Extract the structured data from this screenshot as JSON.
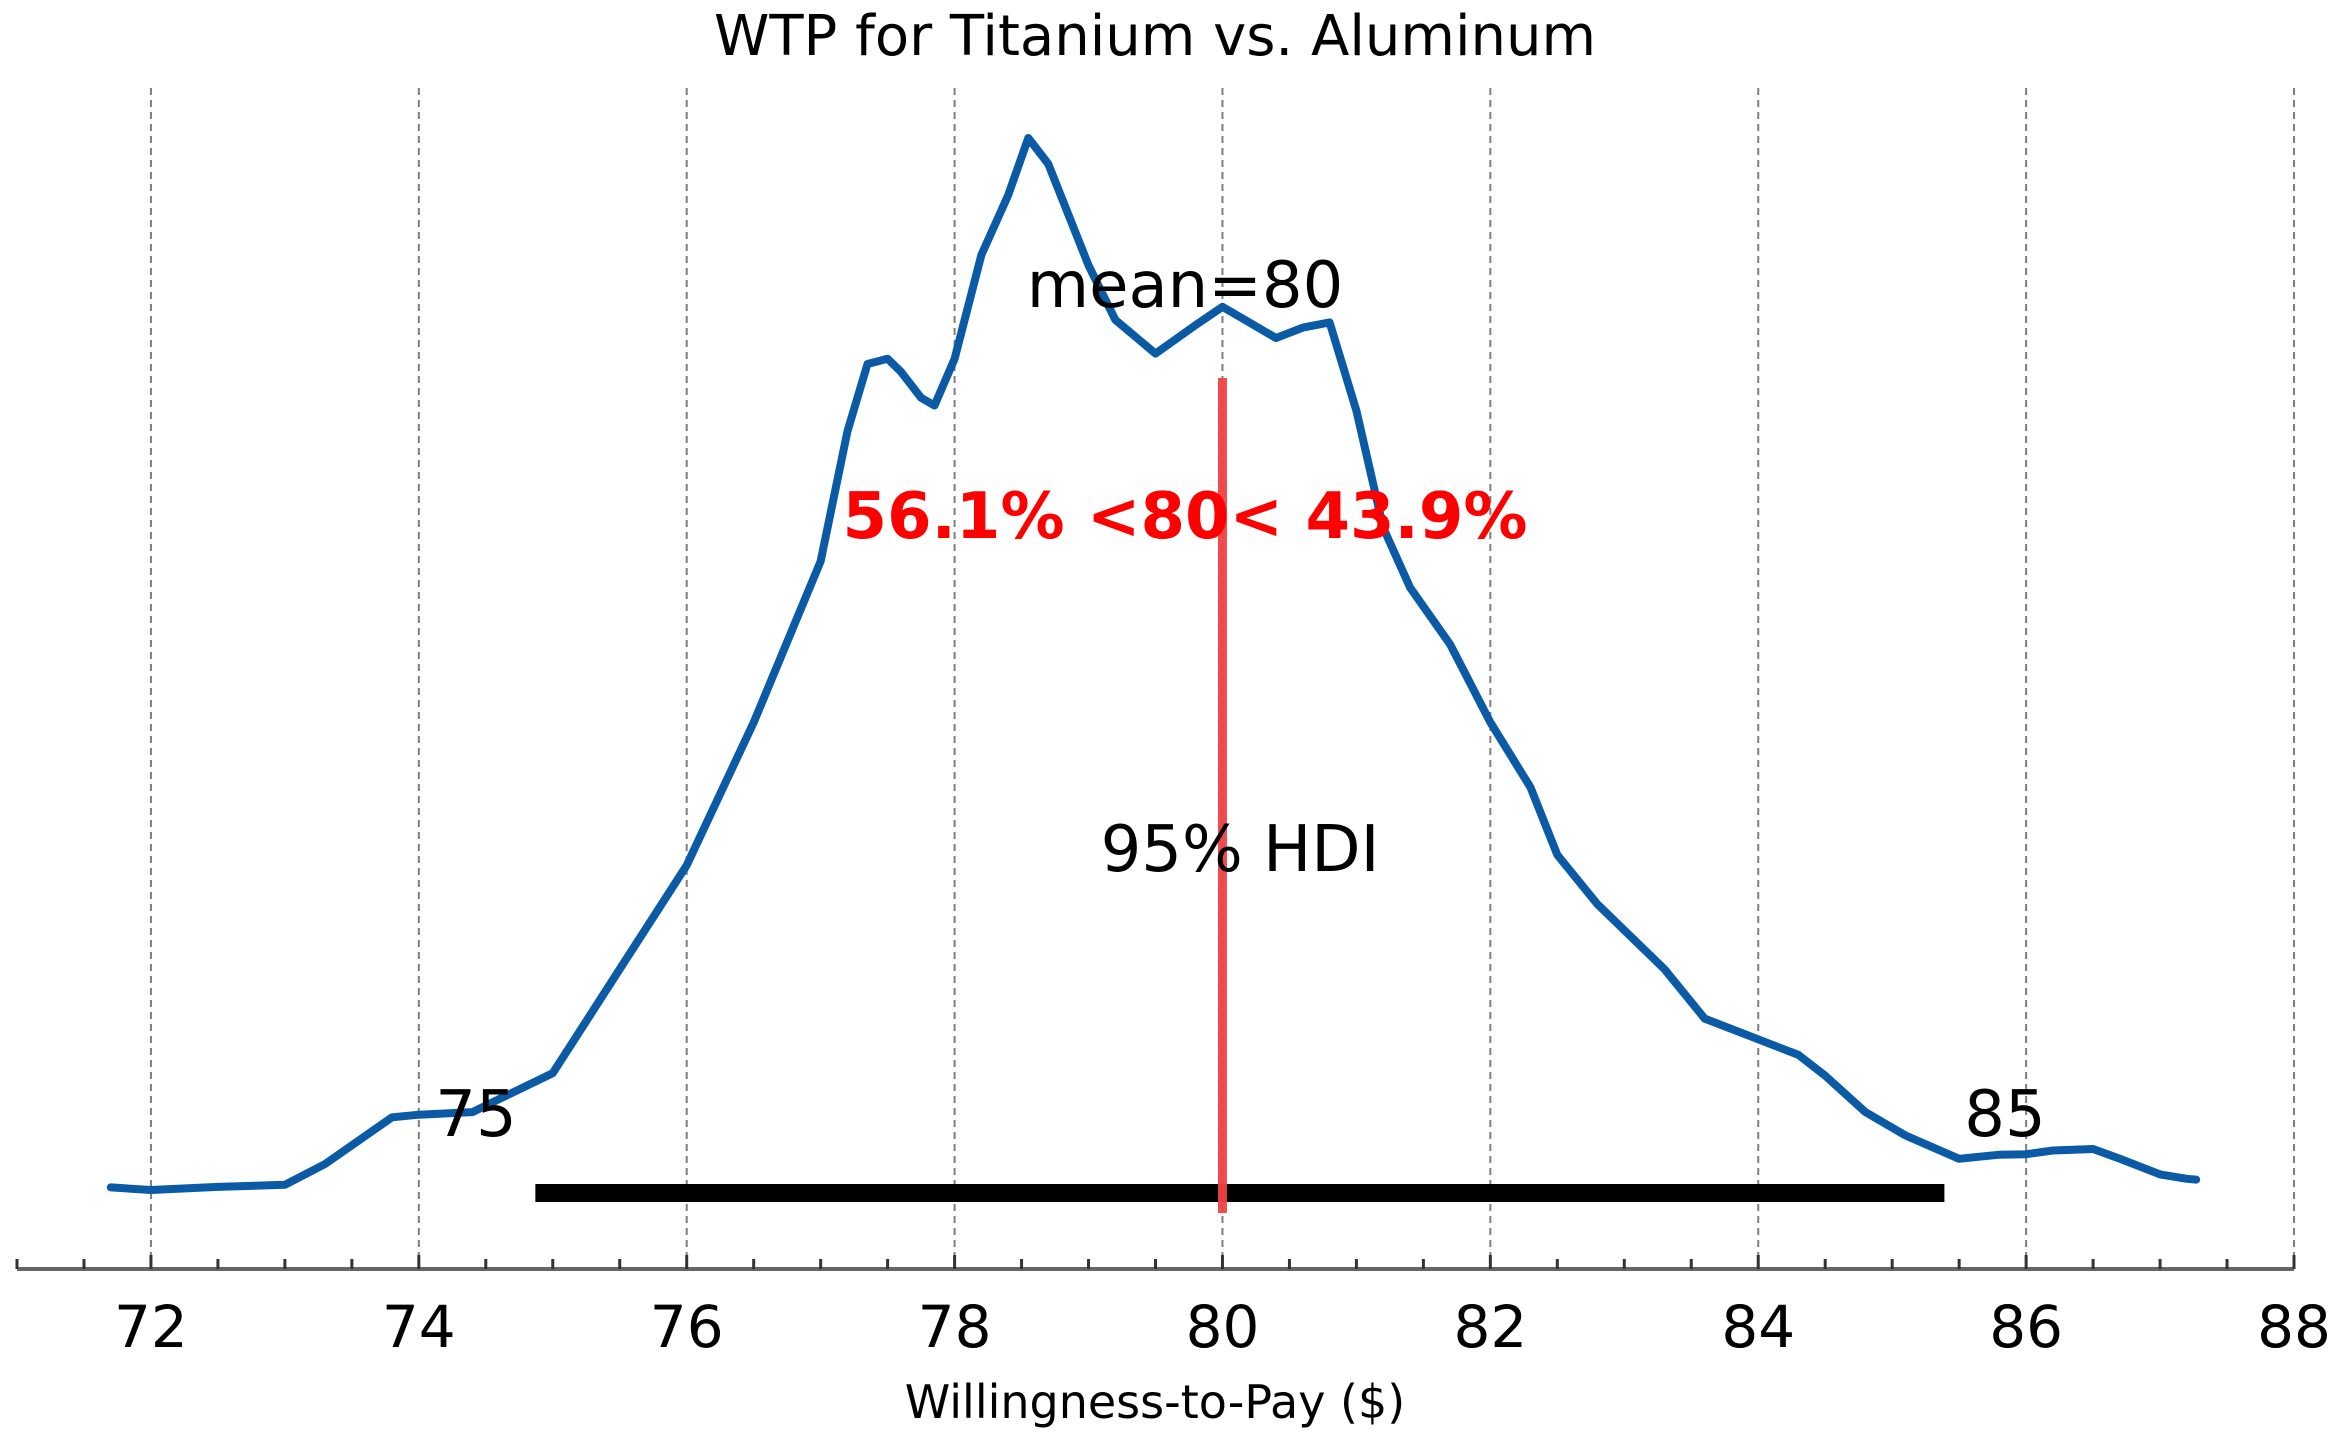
{
  "chart_data": {
    "type": "area",
    "title": "WTP for Titanium vs. Aluminum",
    "xlabel": "Willingness-to-Pay ($)",
    "ylabel": "",
    "xlim": [
      71,
      88
    ],
    "ylim": [
      -0.02,
      0.41
    ],
    "x_ticks": [
      72,
      74,
      76,
      78,
      80,
      82,
      84,
      86,
      88
    ],
    "x_minor_step": 0.5,
    "grid": {
      "x": true,
      "style": "dashed",
      "color": "#7f7f7f"
    },
    "series": [
      {
        "color": "#0b5aa6",
        "x": [
          71.7,
          72.0,
          72.5,
          73.0,
          73.3,
          73.8,
          74.0,
          74.4,
          75.0,
          75.5,
          76.0,
          76.5,
          77.0,
          77.2,
          77.35,
          77.5,
          77.6,
          77.75,
          77.85,
          78.0,
          78.2,
          78.4,
          78.55,
          78.7,
          79.0,
          79.2,
          79.5,
          79.8,
          80.0,
          80.2,
          80.4,
          80.6,
          80.8,
          81.0,
          81.2,
          81.4,
          81.7,
          82.0,
          82.3,
          82.5,
          82.8,
          83.0,
          83.3,
          83.6,
          84.0,
          84.3,
          84.5,
          84.8,
          85.1,
          85.5,
          85.8,
          86.0,
          86.2,
          86.5,
          86.7,
          87.0,
          87.2,
          87.27
        ],
        "y": [
          0.001,
          0.0,
          0.0012,
          0.002,
          0.01,
          0.028,
          0.029,
          0.03,
          0.045,
          0.085,
          0.125,
          0.18,
          0.242,
          0.292,
          0.318,
          0.32,
          0.315,
          0.305,
          0.302,
          0.32,
          0.36,
          0.383,
          0.405,
          0.395,
          0.356,
          0.335,
          0.322,
          0.333,
          0.34,
          0.334,
          0.328,
          0.332,
          0.334,
          0.3,
          0.255,
          0.232,
          0.21,
          0.18,
          0.155,
          0.129,
          0.11,
          0.1,
          0.085,
          0.066,
          0.058,
          0.052,
          0.044,
          0.03,
          0.021,
          0.012,
          0.0136,
          0.0138,
          0.0152,
          0.0158,
          0.012,
          0.006,
          0.0043,
          0.004
        ]
      }
    ],
    "point_estimate": {
      "label": "mean=80",
      "value": 80
    },
    "reference": {
      "label": "56.1% <80< 43.9%",
      "value": 80,
      "line_color": "#ef4444",
      "text_color": "#ff0000"
    },
    "hdi": {
      "label": "95% HDI",
      "low": 74.87,
      "high": 85.39,
      "low_label": "75",
      "high_label": "85",
      "color": "#000000"
    }
  }
}
